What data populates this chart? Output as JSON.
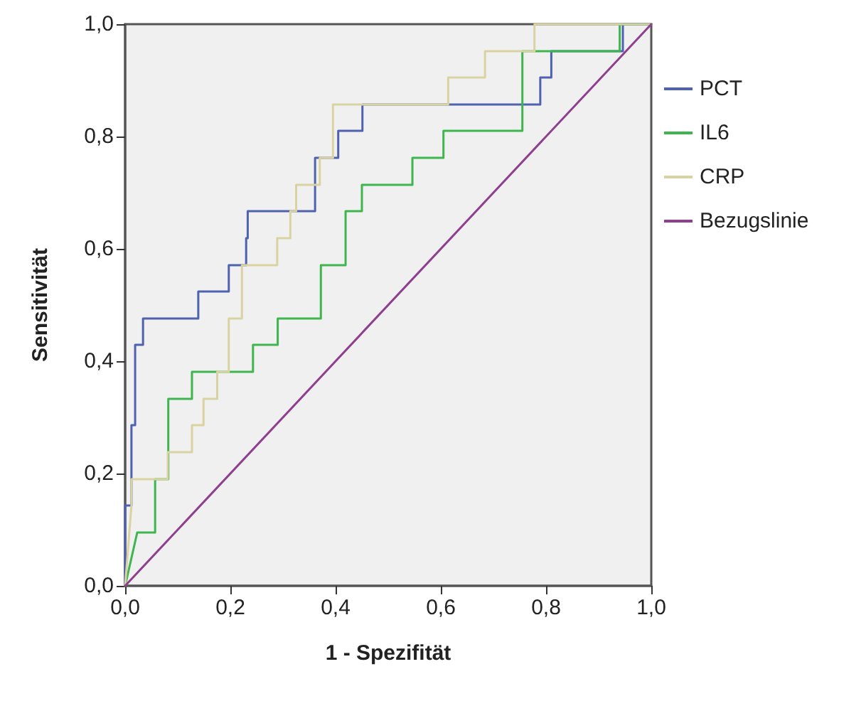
{
  "chart_data": {
    "type": "line",
    "xlabel": "1 - Spezifität",
    "ylabel": "Sensitivität",
    "xlim": [
      0,
      1
    ],
    "ylim": [
      0,
      1
    ],
    "xticks": [
      {
        "value": 0,
        "label": "0,0"
      },
      {
        "value": 0.2,
        "label": "0,2"
      },
      {
        "value": 0.4,
        "label": "0,4"
      },
      {
        "value": 0.6,
        "label": "0,6"
      },
      {
        "value": 0.8,
        "label": "0,8"
      },
      {
        "value": 1,
        "label": "1,0"
      }
    ],
    "yticks": [
      {
        "value": 0,
        "label": "0,0"
      },
      {
        "value": 0.2,
        "label": "0,2"
      },
      {
        "value": 0.4,
        "label": "0,4"
      },
      {
        "value": 0.6,
        "label": "0,6"
      },
      {
        "value": 0.8,
        "label": "0,8"
      },
      {
        "value": 1,
        "label": "1,0"
      }
    ],
    "grid": false,
    "legend": "right",
    "marker": "none",
    "line_style": "solid",
    "series": [
      {
        "name": "PCT",
        "color": "#4f62b0",
        "x": [
          0,
          0,
          0.012,
          0.012,
          0.019,
          0.019,
          0.034,
          0.034,
          0.139,
          0.139,
          0.197,
          0.197,
          0.23,
          0.23,
          0.233,
          0.233,
          0.361,
          0.361,
          0.405,
          0.405,
          0.451,
          0.451,
          0.789,
          0.789,
          0.81,
          0.81,
          0.946,
          0.946,
          1
        ],
        "values": [
          0,
          0.143,
          0.143,
          0.286,
          0.286,
          0.429,
          0.429,
          0.476,
          0.476,
          0.524,
          0.524,
          0.571,
          0.571,
          0.619,
          0.619,
          0.667,
          0.667,
          0.762,
          0.762,
          0.81,
          0.81,
          0.857,
          0.857,
          0.905,
          0.905,
          0.952,
          0.952,
          1,
          1
        ]
      },
      {
        "name": "IL6",
        "color": "#3fb54f",
        "x": [
          0,
          0.023,
          0.057,
          0.057,
          0.082,
          0.082,
          0.127,
          0.127,
          0.243,
          0.243,
          0.29,
          0.29,
          0.372,
          0.372,
          0.419,
          0.419,
          0.45,
          0.45,
          0.546,
          0.546,
          0.605,
          0.605,
          0.755,
          0.755,
          0.94,
          0.94,
          1
        ],
        "values": [
          0,
          0.095,
          0.095,
          0.19,
          0.19,
          0.333,
          0.333,
          0.381,
          0.381,
          0.429,
          0.429,
          0.476,
          0.476,
          0.571,
          0.571,
          0.667,
          0.667,
          0.714,
          0.714,
          0.762,
          0.762,
          0.81,
          0.81,
          0.952,
          0.952,
          1,
          1
        ]
      },
      {
        "name": "CRP",
        "color": "#d9d3a3",
        "x": [
          0,
          0.012,
          0.012,
          0.081,
          0.081,
          0.127,
          0.127,
          0.149,
          0.149,
          0.175,
          0.175,
          0.197,
          0.197,
          0.222,
          0.222,
          0.289,
          0.289,
          0.314,
          0.314,
          0.325,
          0.325,
          0.37,
          0.37,
          0.395,
          0.395,
          0.614,
          0.614,
          0.684,
          0.684,
          0.778,
          0.778,
          1
        ],
        "values": [
          0,
          0.143,
          0.19,
          0.19,
          0.238,
          0.238,
          0.286,
          0.286,
          0.333,
          0.333,
          0.381,
          0.381,
          0.476,
          0.476,
          0.571,
          0.571,
          0.619,
          0.619,
          0.667,
          0.667,
          0.714,
          0.714,
          0.762,
          0.762,
          0.857,
          0.857,
          0.905,
          0.905,
          0.952,
          0.952,
          1,
          1
        ]
      },
      {
        "name": "Bezugslinie",
        "color": "#8e3f8e",
        "x": [
          0,
          1
        ],
        "values": [
          0,
          1
        ]
      }
    ]
  }
}
